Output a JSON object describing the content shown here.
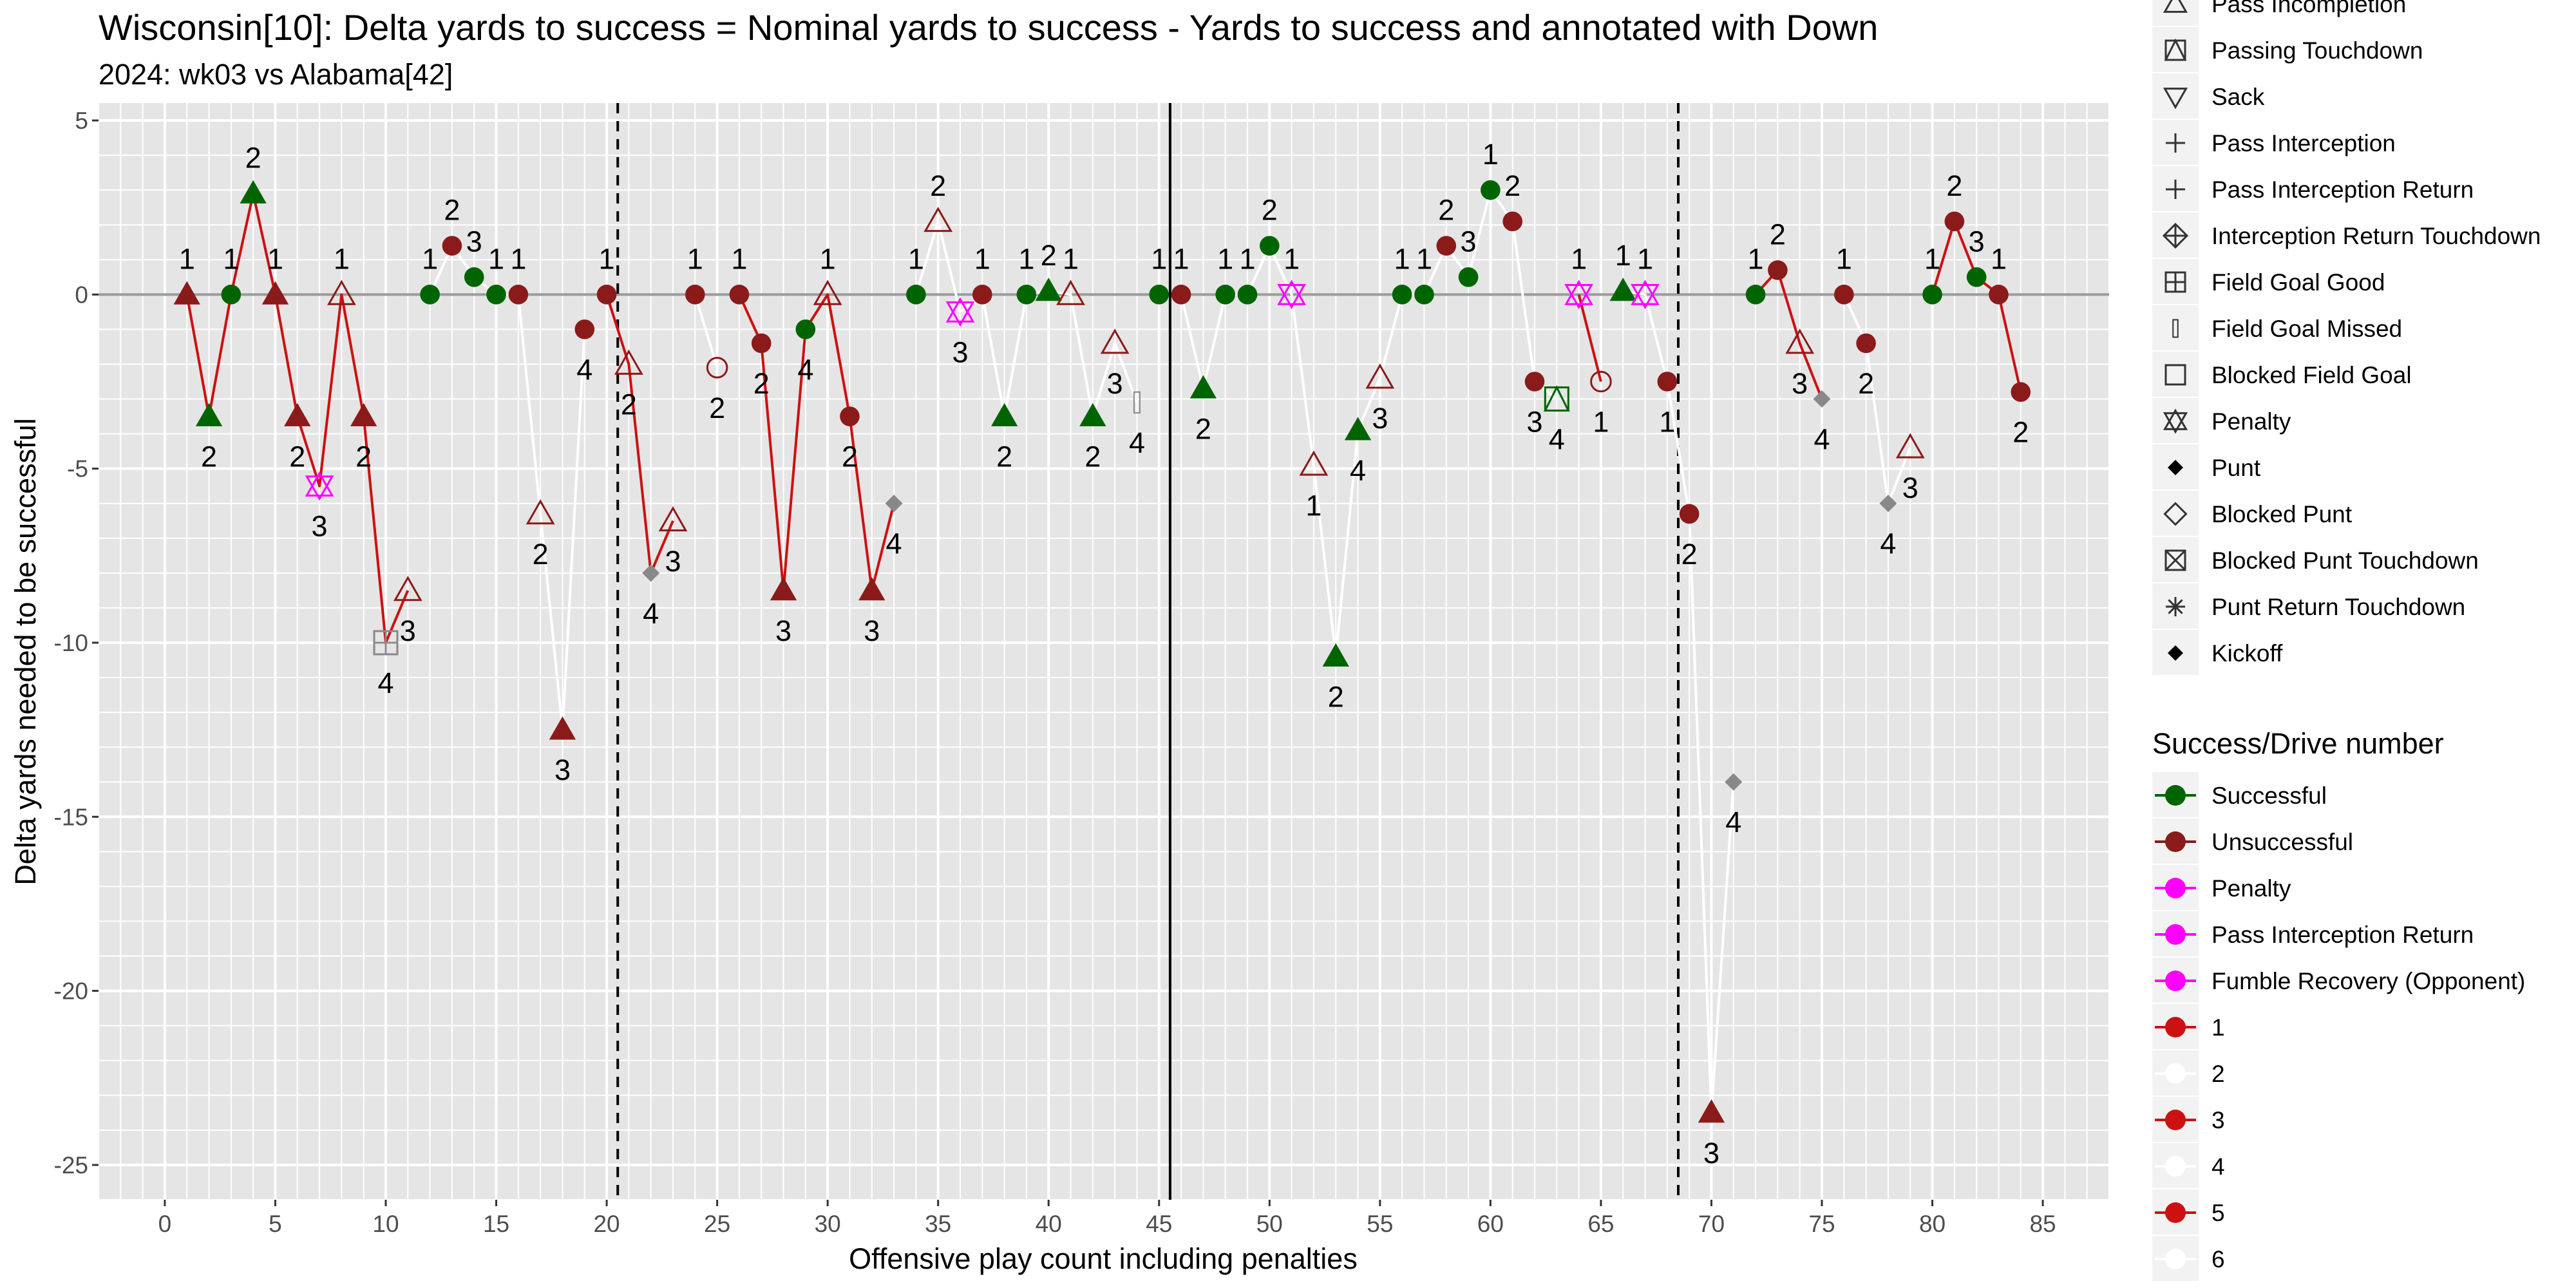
{
  "chart_data": {
    "type": "scatter",
    "title": "Wisconsin[10]: Delta yards to success = Nominal yards to success - Yards to success and annotated with Down",
    "subtitle": "2024: wk03 vs Alabama[42]",
    "xlabel": "Offensive play count including penalties",
    "ylabel": "Delta yards needed to be successful",
    "xlim": [
      -3,
      88
    ],
    "ylim": [
      -26,
      5.5
    ],
    "x_ticks": [
      0,
      5,
      10,
      15,
      20,
      25,
      30,
      35,
      40,
      45,
      50,
      55,
      60,
      65,
      70,
      75,
      80,
      85
    ],
    "y_ticks": [
      5,
      0,
      -5,
      -10,
      -15,
      -20,
      -25
    ],
    "grid": true,
    "reference_lines": {
      "solid_x": [
        45.5
      ],
      "dashed_x": [
        20.5,
        68.5
      ],
      "hline_y": 0
    },
    "colors": {
      "Successful": "#006400",
      "Unsuccessful": "#8b1a1a",
      "Penalty": "#ff00ff",
      "odd_drive_line": "#cc1111",
      "even_drive_line": "#ffffff",
      "gray_point": "#888888"
    },
    "points": [
      {
        "x": 1,
        "y": 0,
        "down": 1,
        "shape": "tri_f",
        "color": "Unsuccessful",
        "drive": 1
      },
      {
        "x": 2,
        "y": -3.5,
        "down": 2,
        "shape": "tri_f",
        "color": "Successful",
        "drive": 1
      },
      {
        "x": 3,
        "y": 0,
        "down": 1,
        "shape": "circle_f",
        "color": "Successful",
        "drive": 1
      },
      {
        "x": 4,
        "y": 2.9,
        "down": 2,
        "shape": "tri_f",
        "color": "Successful",
        "drive": 1
      },
      {
        "x": 5,
        "y": 0,
        "down": 1,
        "shape": "tri_f",
        "color": "Unsuccessful",
        "drive": 1
      },
      {
        "x": 6,
        "y": -3.5,
        "down": 2,
        "shape": "tri_f",
        "color": "Unsuccessful",
        "drive": 1
      },
      {
        "x": 7,
        "y": -5.5,
        "down": 3,
        "shape": "penalty",
        "color": "Penalty",
        "drive": 1
      },
      {
        "x": 8,
        "y": 0,
        "down": 1,
        "shape": "tri_o",
        "color": "Unsuccessful",
        "drive": 1
      },
      {
        "x": 9,
        "y": -3.5,
        "down": 2,
        "shape": "tri_f",
        "color": "Unsuccessful",
        "drive": 1
      },
      {
        "x": 10,
        "y": -10,
        "down": 4,
        "shape": "fg_good",
        "color": "gray_point",
        "drive": 1
      },
      {
        "x": 11,
        "y": -8.5,
        "down": 3,
        "shape": "tri_o",
        "color": "Unsuccessful",
        "drive": 1
      },
      {
        "x": 12,
        "y": 0,
        "down": 1,
        "shape": "circle_f",
        "color": "Successful",
        "drive": 2
      },
      {
        "x": 13,
        "y": 1.4,
        "down": 2,
        "shape": "circle_f",
        "color": "Unsuccessful",
        "drive": 2
      },
      {
        "x": 14,
        "y": 0.5,
        "down": 3,
        "shape": "circle_f",
        "color": "Successful",
        "drive": 2
      },
      {
        "x": 15,
        "y": 0,
        "down": 1,
        "shape": "circle_f",
        "color": "Successful",
        "drive": 2
      },
      {
        "x": 16,
        "y": 0,
        "down": 1,
        "shape": "circle_f",
        "color": "Unsuccessful",
        "drive": 2
      },
      {
        "x": 17,
        "y": -6.3,
        "down": 2,
        "shape": "tri_o",
        "color": "Unsuccessful",
        "drive": 2
      },
      {
        "x": 18,
        "y": -12.5,
        "down": 3,
        "shape": "tri_f",
        "color": "Unsuccessful",
        "drive": 2
      },
      {
        "x": 19,
        "y": -1,
        "down": 4,
        "shape": "circle_f",
        "color": "Unsuccessful",
        "drive": 2
      },
      {
        "x": 20,
        "y": 0,
        "down": 1,
        "shape": "circle_f",
        "color": "Unsuccessful",
        "drive": 3
      },
      {
        "x": 21,
        "y": -2,
        "down": 2,
        "shape": "tri_o",
        "color": "Unsuccessful",
        "drive": 3
      },
      {
        "x": 22,
        "y": -8,
        "down": 4,
        "shape": "diamond",
        "color": "gray_point",
        "drive": 3
      },
      {
        "x": 23,
        "y": -6.5,
        "down": 3,
        "shape": "tri_o",
        "color": "Unsuccessful",
        "drive": 3
      },
      {
        "x": 24,
        "y": 0,
        "down": 1,
        "shape": "circle_f",
        "color": "Unsuccessful",
        "drive": 4
      },
      {
        "x": 25,
        "y": -2.1,
        "down": 2,
        "shape": "circle_o",
        "color": "Unsuccessful",
        "drive": 4
      },
      {
        "x": 26,
        "y": 0,
        "down": 1,
        "shape": "circle_f",
        "color": "Unsuccessful",
        "drive": 5
      },
      {
        "x": 27,
        "y": -1.4,
        "down": 2,
        "shape": "circle_f",
        "color": "Unsuccessful",
        "drive": 5
      },
      {
        "x": 28,
        "y": -8.5,
        "down": 3,
        "shape": "tri_f",
        "color": "Unsuccessful",
        "drive": 5
      },
      {
        "x": 29,
        "y": -1,
        "down": 4,
        "shape": "circle_f",
        "color": "Successful",
        "drive": 5
      },
      {
        "x": 30,
        "y": 0,
        "down": 1,
        "shape": "tri_o",
        "color": "Unsuccessful",
        "drive": 5
      },
      {
        "x": 31,
        "y": -3.5,
        "down": 2,
        "shape": "circle_f",
        "color": "Unsuccessful",
        "drive": 5
      },
      {
        "x": 32,
        "y": -8.5,
        "down": 3,
        "shape": "tri_f",
        "color": "Unsuccessful",
        "drive": 5
      },
      {
        "x": 33,
        "y": -6,
        "down": 4,
        "shape": "diamond",
        "color": "gray_point",
        "drive": 5
      },
      {
        "x": 34,
        "y": 0,
        "down": 1,
        "shape": "circle_f",
        "color": "Successful",
        "drive": 6
      },
      {
        "x": 35,
        "y": 2.1,
        "down": 2,
        "shape": "tri_o",
        "color": "Unsuccessful",
        "drive": 6
      },
      {
        "x": 36,
        "y": -0.5,
        "down": 3,
        "shape": "penalty",
        "color": "Penalty",
        "drive": 6
      },
      {
        "x": 37,
        "y": 0,
        "down": 1,
        "shape": "circle_f",
        "color": "Unsuccessful",
        "drive": 6
      },
      {
        "x": 38,
        "y": -3.5,
        "down": 2,
        "shape": "tri_f",
        "color": "Successful",
        "drive": 6
      },
      {
        "x": 39,
        "y": 0,
        "down": 1,
        "shape": "circle_f",
        "color": "Successful",
        "drive": 6
      },
      {
        "x": 40,
        "y": 0.1,
        "down": 2,
        "shape": "tri_f",
        "color": "Successful",
        "drive": 6
      },
      {
        "x": 41,
        "y": 0,
        "down": 1,
        "shape": "tri_o",
        "color": "Unsuccessful",
        "drive": 6
      },
      {
        "x": 42,
        "y": -3.5,
        "down": 2,
        "shape": "tri_f",
        "color": "Successful",
        "drive": 6
      },
      {
        "x": 43,
        "y": -1.4,
        "down": 3,
        "shape": "tri_o",
        "color": "Unsuccessful",
        "drive": 6
      },
      {
        "x": 44,
        "y": -3.1,
        "down": 4,
        "shape": "fg_missed",
        "color": "gray_point",
        "drive": 6
      },
      {
        "x": 45,
        "y": 0,
        "down": 1,
        "shape": "circle_f",
        "color": "Successful",
        "drive": 7
      },
      {
        "x": 46,
        "y": 0,
        "down": 1,
        "shape": "circle_f",
        "color": "Unsuccessful",
        "drive": 8
      },
      {
        "x": 47,
        "y": -2.7,
        "down": 2,
        "shape": "tri_f",
        "color": "Successful",
        "drive": 8
      },
      {
        "x": 48,
        "y": 0,
        "down": 1,
        "shape": "circle_f",
        "color": "Successful",
        "drive": 8
      },
      {
        "x": 49,
        "y": 0,
        "down": 1,
        "shape": "circle_f",
        "color": "Successful",
        "drive": 8
      },
      {
        "x": 50,
        "y": 1.4,
        "down": 2,
        "shape": "circle_f",
        "color": "Successful",
        "drive": 8
      },
      {
        "x": 51,
        "y": 0,
        "down": 1,
        "shape": "penalty",
        "color": "Penalty",
        "drive": 8
      },
      {
        "x": 52,
        "y": -4.9,
        "down": 1,
        "shape": "tri_o",
        "color": "Unsuccessful",
        "drive": 8
      },
      {
        "x": 53,
        "y": -10.4,
        "down": 2,
        "shape": "tri_f",
        "color": "Successful",
        "drive": 8
      },
      {
        "x": 54,
        "y": -3.9,
        "down": 4,
        "shape": "tri_f",
        "color": "Successful",
        "drive": 8
      },
      {
        "x": 55,
        "y": -2.4,
        "down": 3,
        "shape": "tri_o",
        "color": "Unsuccessful",
        "drive": 8
      },
      {
        "x": 56,
        "y": 0,
        "down": 1,
        "shape": "circle_f",
        "color": "Successful",
        "drive": 8
      },
      {
        "x": 57,
        "y": 0,
        "down": 1,
        "shape": "circle_f",
        "color": "Successful",
        "drive": 8
      },
      {
        "x": 58,
        "y": 1.4,
        "down": 2,
        "shape": "circle_f",
        "color": "Unsuccessful",
        "drive": 8
      },
      {
        "x": 59,
        "y": 0.5,
        "down": 3,
        "shape": "circle_f",
        "color": "Successful",
        "drive": 8
      },
      {
        "x": 60,
        "y": 3,
        "down": 1,
        "shape": "circle_f",
        "color": "Successful",
        "drive": 8
      },
      {
        "x": 61,
        "y": 2.1,
        "down": 2,
        "shape": "circle_f",
        "color": "Unsuccessful",
        "drive": 8
      },
      {
        "x": 62,
        "y": -2.5,
        "down": 3,
        "shape": "circle_f",
        "color": "Unsuccessful",
        "drive": 8
      },
      {
        "x": 63,
        "y": -3,
        "down": 4,
        "shape": "passing_td",
        "color": "Successful",
        "drive": 8
      },
      {
        "x": 64,
        "y": 0,
        "down": 1,
        "shape": "penalty",
        "color": "Penalty",
        "drive": 9
      },
      {
        "x": 65,
        "y": -2.5,
        "down": 1,
        "shape": "circle_o",
        "color": "Unsuccessful",
        "drive": 9
      },
      {
        "x": 66,
        "y": 0.1,
        "down": 1,
        "shape": "tri_f",
        "color": "Successful",
        "drive": 10
      },
      {
        "x": 67,
        "y": 0,
        "down": 1,
        "shape": "penalty",
        "color": "Penalty",
        "drive": 10
      },
      {
        "x": 68,
        "y": -2.5,
        "down": 1,
        "shape": "circle_f",
        "color": "Unsuccessful",
        "drive": 10
      },
      {
        "x": 69,
        "y": -6.3,
        "down": 2,
        "shape": "circle_f",
        "color": "Unsuccessful",
        "drive": 10
      },
      {
        "x": 70,
        "y": -23.5,
        "down": 3,
        "shape": "tri_f",
        "color": "Unsuccessful",
        "drive": 10
      },
      {
        "x": 71,
        "y": -14,
        "down": 4,
        "shape": "diamond",
        "color": "gray_point",
        "drive": 10
      },
      {
        "x": 72,
        "y": 0,
        "down": 1,
        "shape": "circle_f",
        "color": "Successful",
        "drive": 11
      },
      {
        "x": 73,
        "y": 0.7,
        "down": 2,
        "shape": "circle_f",
        "color": "Unsuccessful",
        "drive": 11
      },
      {
        "x": 74,
        "y": -1.4,
        "down": 3,
        "shape": "tri_o",
        "color": "Unsuccessful",
        "drive": 11
      },
      {
        "x": 75,
        "y": -3,
        "down": 4,
        "shape": "diamond",
        "color": "gray_point",
        "drive": 11
      },
      {
        "x": 76,
        "y": 0,
        "down": 1,
        "shape": "circle_f",
        "color": "Unsuccessful",
        "drive": 12
      },
      {
        "x": 77,
        "y": -1.4,
        "down": 2,
        "shape": "circle_f",
        "color": "Unsuccessful",
        "drive": 12
      },
      {
        "x": 78,
        "y": -6,
        "down": 4,
        "shape": "diamond",
        "color": "gray_point",
        "drive": 12
      },
      {
        "x": 79,
        "y": -4.4,
        "down": 3,
        "shape": "tri_o",
        "color": "Unsuccessful",
        "drive": 12
      },
      {
        "x": 80,
        "y": 0,
        "down": 1,
        "shape": "circle_f",
        "color": "Successful",
        "drive": 13
      },
      {
        "x": 81,
        "y": 2.1,
        "down": 2,
        "shape": "circle_f",
        "color": "Unsuccessful",
        "drive": 13
      },
      {
        "x": 82,
        "y": 0.5,
        "down": 3,
        "shape": "circle_f",
        "color": "Successful",
        "drive": 13
      },
      {
        "x": 83,
        "y": 0,
        "down": 1,
        "shape": "circle_f",
        "color": "Unsuccessful",
        "drive": 13
      },
      {
        "x": 84,
        "y": -2.8,
        "down": 2,
        "shape": "circle_f",
        "color": "Unsuccessful",
        "drive": 13
      }
    ],
    "legend_shape": {
      "items": [
        {
          "label": "Pass Incompletion",
          "shape": "tri_o"
        },
        {
          "label": "Passing Touchdown",
          "shape": "passing_td"
        },
        {
          "label": "Sack",
          "shape": "tri_down"
        },
        {
          "label": "Pass Interception",
          "shape": "plus"
        },
        {
          "label": "Pass Interception Return",
          "shape": "plus"
        },
        {
          "label": "Interception Return Touchdown",
          "shape": "diamond_plus"
        },
        {
          "label": "Field Goal Good",
          "shape": "fg_good"
        },
        {
          "label": "Field Goal Missed",
          "shape": "fg_missed"
        },
        {
          "label": "Blocked Field Goal",
          "shape": "square_o"
        },
        {
          "label": "Penalty",
          "shape": "penalty"
        },
        {
          "label": "Punt",
          "shape": "diamond_f"
        },
        {
          "label": "Blocked Punt",
          "shape": "diamond_o"
        },
        {
          "label": "Blocked Punt Touchdown",
          "shape": "square_x"
        },
        {
          "label": "Punt Return Touchdown",
          "shape": "star"
        },
        {
          "label": "Kickoff",
          "shape": "diamond_f"
        }
      ]
    },
    "legend_color": {
      "title": "Success/Drive number",
      "items": [
        {
          "label": "Successful",
          "color": "#006400"
        },
        {
          "label": "Unsuccessful",
          "color": "#8b1a1a"
        },
        {
          "label": "Penalty",
          "color": "#ff00ff"
        },
        {
          "label": "Pass Interception Return",
          "color": "#ff00ff"
        },
        {
          "label": "Fumble Recovery (Opponent)",
          "color": "#ff00ff"
        },
        {
          "label": "1",
          "color": "#cc1111"
        },
        {
          "label": "2",
          "color": "#ffffff"
        },
        {
          "label": "3",
          "color": "#cc1111"
        },
        {
          "label": "4",
          "color": "#ffffff"
        },
        {
          "label": "5",
          "color": "#cc1111"
        },
        {
          "label": "6",
          "color": "#ffffff"
        }
      ]
    }
  }
}
